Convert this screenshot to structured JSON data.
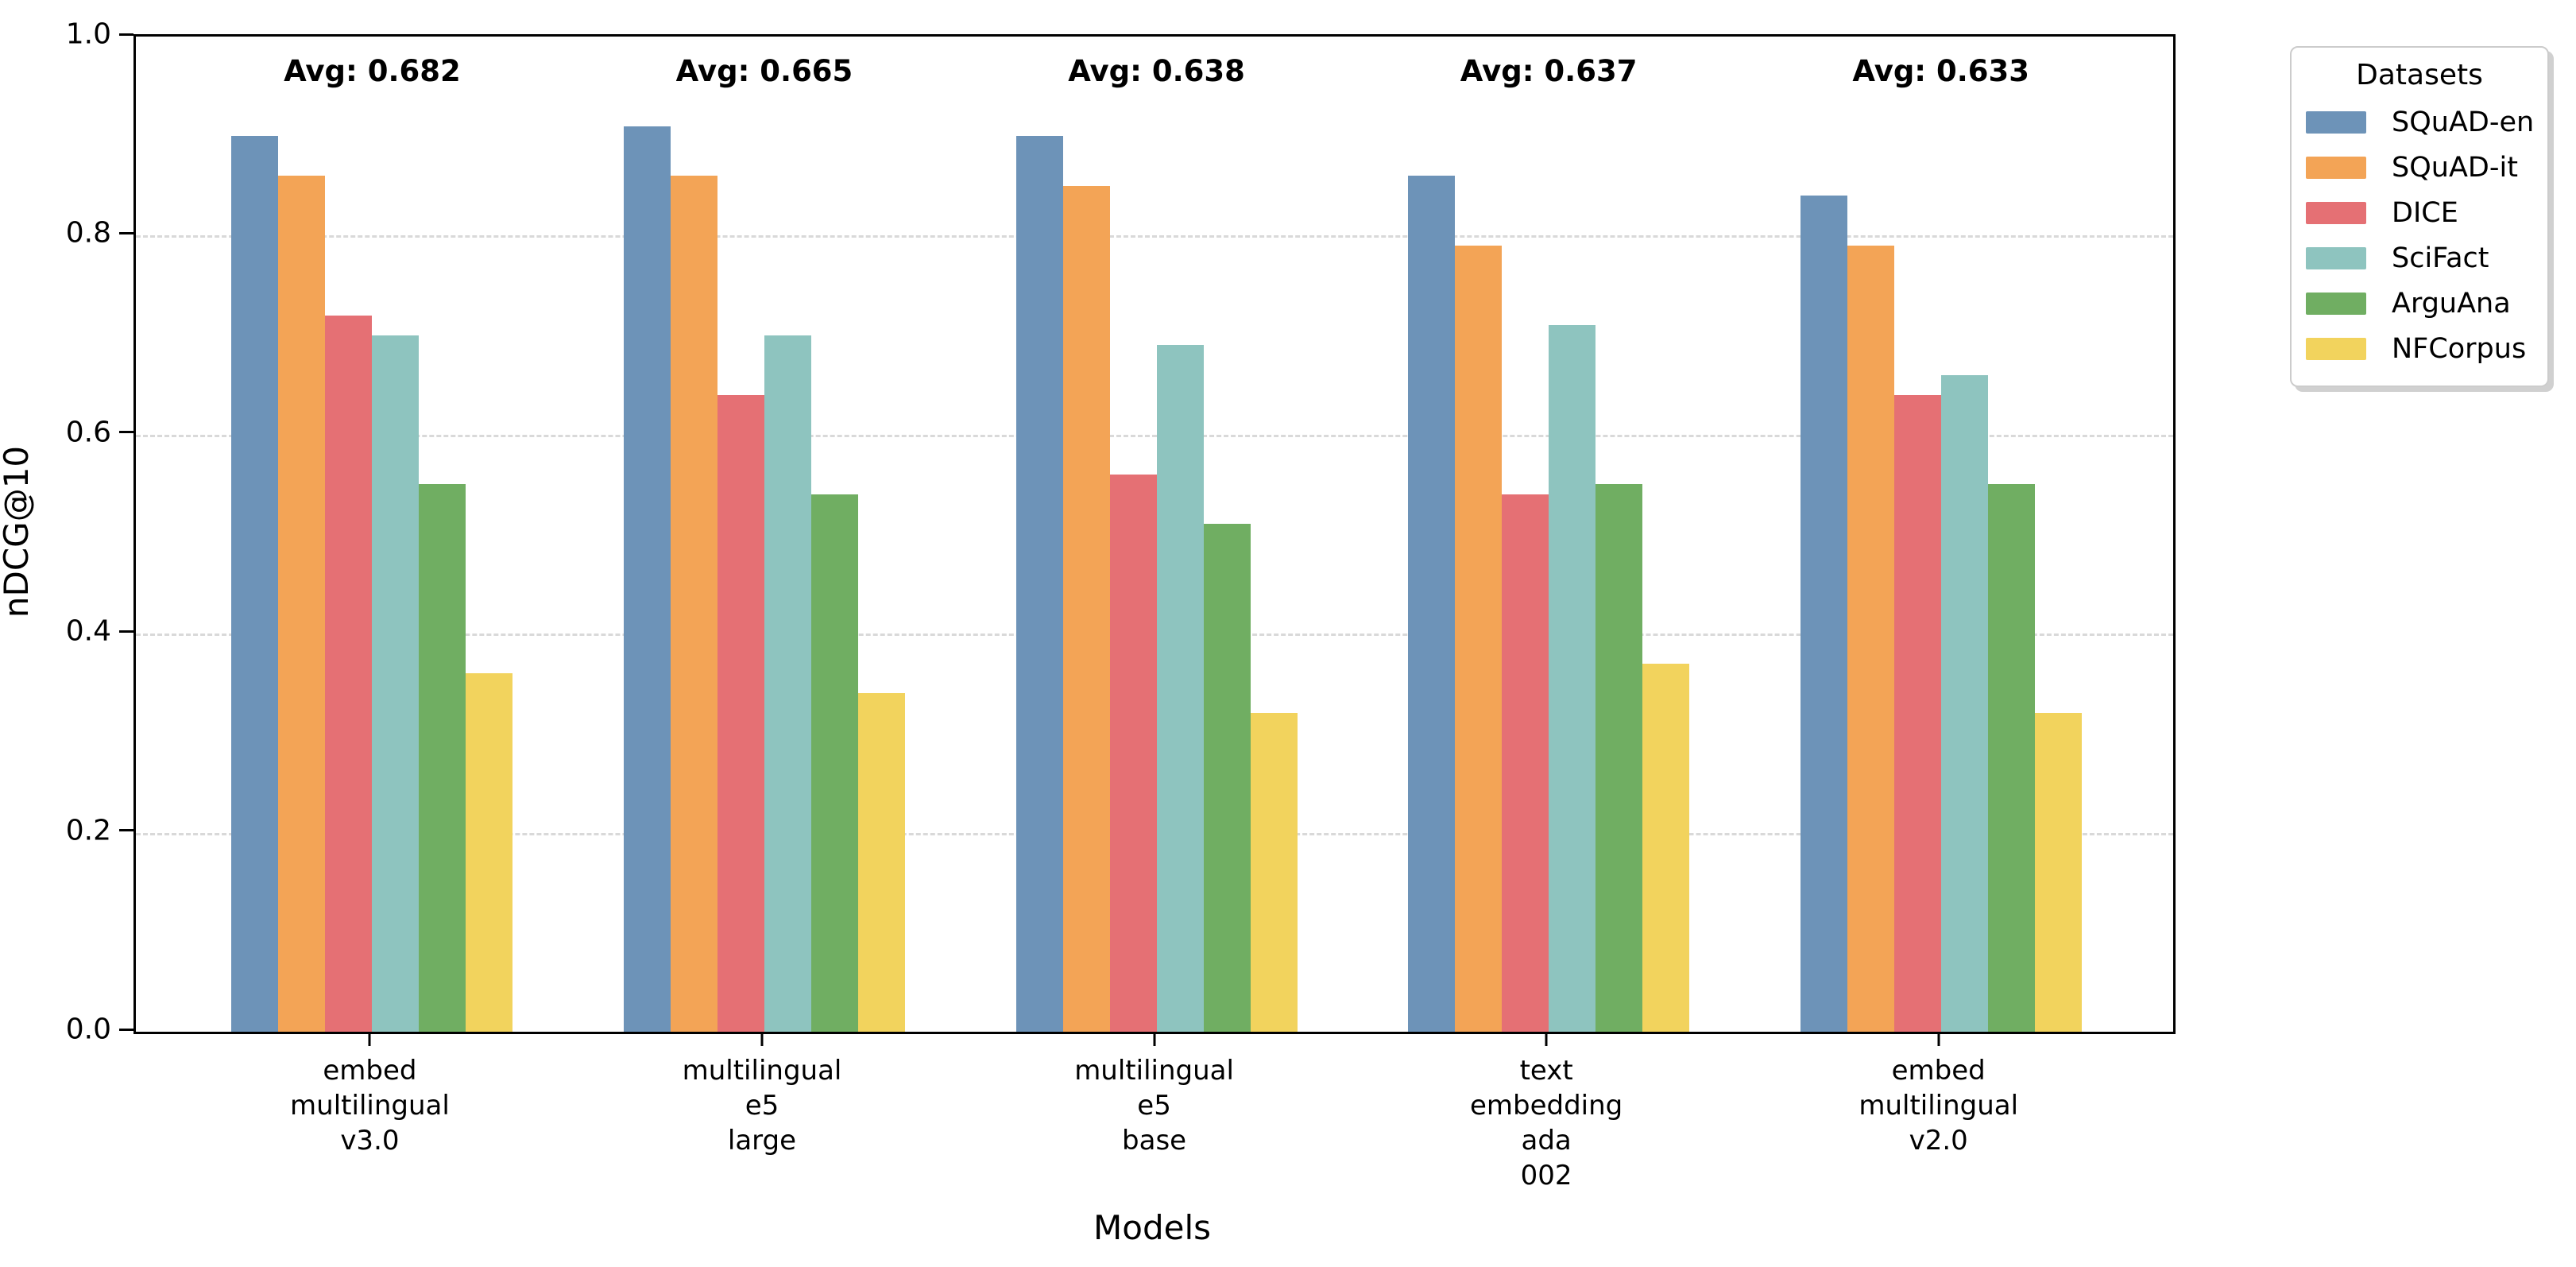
{
  "chart_data": {
    "type": "bar",
    "title": "",
    "xlabel": "Models",
    "ylabel": "nDCG@10",
    "ylim": [
      0.0,
      1.0
    ],
    "yticks": [
      0.0,
      0.2,
      0.4,
      0.6,
      0.8,
      1.0
    ],
    "ytick_labels": [
      "0.0",
      "0.2",
      "0.4",
      "0.6",
      "0.8",
      "1.0"
    ],
    "grid": "horizontal dashed lines at 0.2 intervals",
    "legend_title": "Datasets",
    "legend_position": "outside upper right",
    "categories": [
      [
        "embed",
        "multilingual",
        "v3.0"
      ],
      [
        "multilingual",
        "e5",
        "large"
      ],
      [
        "multilingual",
        "e5",
        "base"
      ],
      [
        "text",
        "embedding",
        "ada",
        "002"
      ],
      [
        "embed",
        "multilingual",
        "v2.0"
      ]
    ],
    "group_averages": [
      "Avg: 0.682",
      "Avg: 0.665",
      "Avg: 0.638",
      "Avg: 0.637",
      "Avg: 0.633"
    ],
    "series": [
      {
        "name": "SQuAD-en",
        "color": "#6d93b8",
        "values": [
          0.9,
          0.91,
          0.9,
          0.86,
          0.84
        ]
      },
      {
        "name": "SQuAD-it",
        "color": "#f3a456",
        "values": [
          0.86,
          0.86,
          0.85,
          0.79,
          0.79
        ]
      },
      {
        "name": "DICE",
        "color": "#e57074",
        "values": [
          0.72,
          0.64,
          0.56,
          0.54,
          0.64
        ]
      },
      {
        "name": "SciFact",
        "color": "#8ec4bf",
        "values": [
          0.7,
          0.7,
          0.69,
          0.71,
          0.66
        ]
      },
      {
        "name": "ArguAna",
        "color": "#70ae62",
        "values": [
          0.55,
          0.54,
          0.51,
          0.55,
          0.55
        ]
      },
      {
        "name": "NFCorpus",
        "color": "#f2d35d",
        "values": [
          0.36,
          0.34,
          0.32,
          0.37,
          0.32
        ]
      }
    ]
  }
}
